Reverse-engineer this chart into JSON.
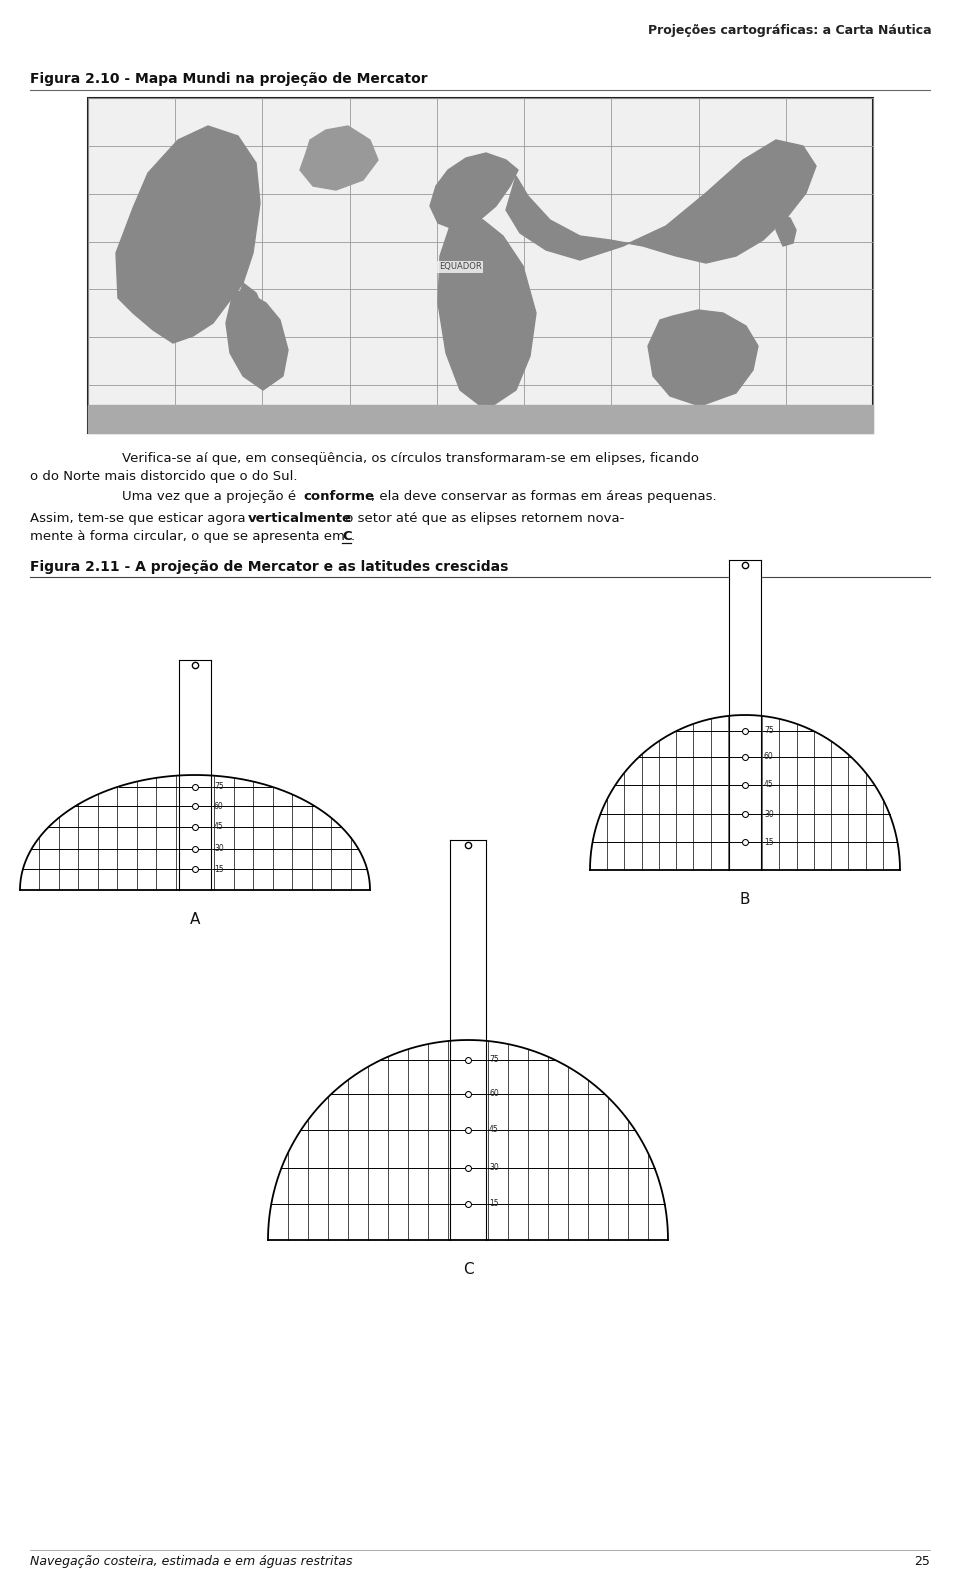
{
  "header_bg": "#c8c8c8",
  "header_text": "Projeções cartográficas: a Carta Náutica",
  "header_text_color": "#222222",
  "header_fontsize": 9,
  "fig_title1": "Figura 2.10 - Mapa Mundi na projeção de Mercator",
  "fig_title1_fontsize": 10,
  "fig_title2": "Figura 2.11 - A projeção de Mercator e as latitudes crescidas",
  "fig_title2_fontsize": 10,
  "footer_text": "Navegação costeira, estimada e em águas restritas",
  "footer_page": "25",
  "footer_fontsize": 9,
  "bg_color": "#ffffff",
  "text_color": "#111111",
  "lat_labels_A": [
    "15",
    "30",
    "45",
    "60",
    "75"
  ],
  "lat_labels_B": [
    "15",
    "30",
    "45",
    "60",
    "75"
  ],
  "lat_labels_C": [
    "15",
    "30",
    "45",
    "60",
    "75"
  ]
}
